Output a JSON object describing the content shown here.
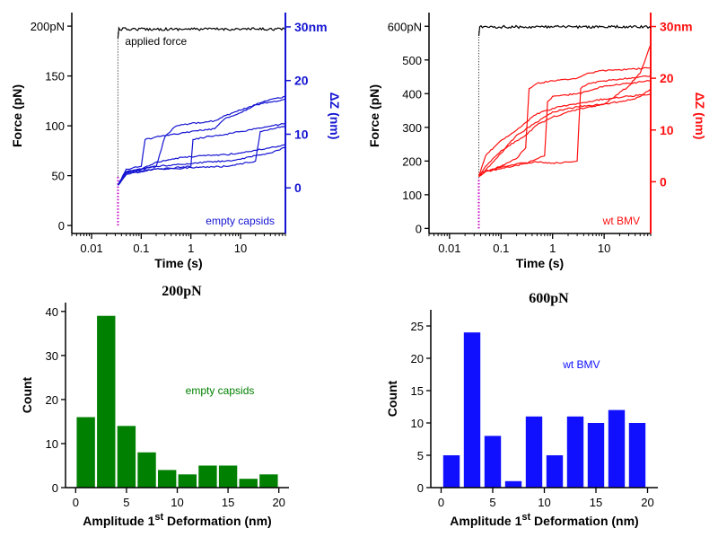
{
  "chart_data": [
    {
      "type": "line",
      "panel": "top-left",
      "xlabel": "Time (s)",
      "xscale": "log",
      "xlim": [
        0.004,
        80
      ],
      "xticks": [
        {
          "v": 0.01,
          "label": "0.01"
        },
        {
          "v": 0.1,
          "label": "0.1"
        },
        {
          "v": 1,
          "label": "1"
        },
        {
          "v": 10,
          "label": "10"
        }
      ],
      "ylabel": "Force (pN)",
      "ylim": [
        -8,
        210
      ],
      "yticks": [
        {
          "v": 0,
          "label": "0"
        },
        {
          "v": 50,
          "label": "50"
        },
        {
          "v": 100,
          "label": "100"
        },
        {
          "v": 150,
          "label": "150"
        },
        {
          "v": 200,
          "label": "200pN"
        }
      ],
      "y2label": "ΔZ (nm)",
      "y2lim": [
        -8.5,
        32
      ],
      "y2ticks": [
        {
          "v": 0,
          "label": "0"
        },
        {
          "v": 10,
          "label": "10"
        },
        {
          "v": 20,
          "label": "20"
        },
        {
          "v": 30,
          "label": "30nm"
        }
      ],
      "axis2_color": "#1414d2",
      "force_color": "#000000",
      "ramp_color": "#c000c0",
      "trace_color": "#1414d2",
      "annotations": [
        {
          "text": "applied force",
          "color": "#000000"
        },
        {
          "text": "empty capsids",
          "color": "#1414d2"
        }
      ],
      "force_series": {
        "t0": 0.034,
        "plateau": 197
      },
      "series": [
        {
          "x": [
            0.034,
            0.05,
            0.1,
            0.2,
            0.5,
            1,
            2,
            5,
            10,
            20,
            40,
            80
          ],
          "y": [
            0.5,
            2.5,
            3.5,
            4.8,
            5.5,
            5.8,
            6.0,
            6.2,
            6.5,
            7.0,
            7.5,
            8.0
          ]
        },
        {
          "x": [
            0.034,
            0.05,
            0.1,
            0.2,
            0.5,
            1,
            2,
            5,
            10,
            20,
            40,
            80
          ],
          "y": [
            0.5,
            3.0,
            3.5,
            4.0,
            4.3,
            4.5,
            4.8,
            5.0,
            5.3,
            6.0,
            6.5,
            7.5
          ]
        },
        {
          "x": [
            0.034,
            0.05,
            0.1,
            0.2,
            0.5,
            1,
            1.1,
            2,
            5,
            10,
            20,
            40,
            80
          ],
          "y": [
            0.5,
            2.5,
            3.0,
            3.5,
            3.8,
            4.0,
            9.0,
            9.5,
            10.0,
            10.5,
            11.0,
            11.5,
            12.0
          ]
        },
        {
          "x": [
            0.034,
            0.05,
            0.1,
            0.12,
            0.2,
            0.5,
            1,
            3,
            5,
            10,
            20,
            40,
            80
          ],
          "y": [
            0.5,
            3.5,
            4.0,
            9.0,
            9.5,
            10.0,
            10.5,
            11.0,
            13.0,
            14.0,
            15.5,
            16.0,
            16.5
          ]
        },
        {
          "x": [
            0.034,
            0.05,
            0.1,
            0.2,
            0.3,
            0.5,
            1,
            3,
            5,
            10,
            20,
            40,
            80
          ],
          "y": [
            0.5,
            3.0,
            3.5,
            4.0,
            9.5,
            11.5,
            12.0,
            12.5,
            13.5,
            14.5,
            15.5,
            16.5,
            17.0
          ]
        },
        {
          "x": [
            0.034,
            0.05,
            0.1,
            0.2,
            0.5,
            1,
            5,
            10,
            20,
            25,
            40,
            80
          ],
          "y": [
            0.5,
            2.8,
            3.2,
            3.5,
            3.6,
            3.8,
            4.0,
            4.5,
            5.0,
            10.5,
            11.0,
            11.5
          ]
        }
      ]
    },
    {
      "type": "line",
      "panel": "top-right",
      "xlabel": "Time (s)",
      "xscale": "log",
      "xlim": [
        0.004,
        80
      ],
      "xticks": [
        {
          "v": 0.01,
          "label": "0.01"
        },
        {
          "v": 0.1,
          "label": "0.1"
        },
        {
          "v": 1,
          "label": "1"
        },
        {
          "v": 10,
          "label": "10"
        }
      ],
      "ylabel": "Force (pN)",
      "ylim": [
        -15,
        630
      ],
      "yticks": [
        {
          "v": 0,
          "label": "0"
        },
        {
          "v": 100,
          "label": "100"
        },
        {
          "v": 200,
          "label": "200"
        },
        {
          "v": 300,
          "label": "300"
        },
        {
          "v": 400,
          "label": "400"
        },
        {
          "v": 500,
          "label": "500"
        },
        {
          "v": 600,
          "label": "600pN"
        }
      ],
      "y2label": "ΔZ (nm)",
      "y2lim": [
        -10,
        32
      ],
      "y2ticks": [
        {
          "v": 0,
          "label": "0"
        },
        {
          "v": 10,
          "label": "10"
        },
        {
          "v": 20,
          "label": "20"
        },
        {
          "v": 30,
          "label": "30nm"
        }
      ],
      "axis2_color": "#ff1010",
      "force_color": "#000000",
      "ramp_color": "#c000c0",
      "trace_color": "#ff1010",
      "annotations": [
        {
          "text": "wt BMV",
          "color": "#ff1010"
        }
      ],
      "force_series": {
        "t0": 0.037,
        "plateau": 598
      },
      "series": [
        {
          "x": [
            0.037,
            0.05,
            0.1,
            0.2,
            0.5,
            1,
            2,
            3,
            3.5,
            5,
            10,
            30,
            80
          ],
          "y": [
            1.0,
            2.0,
            2.8,
            3.5,
            3.8,
            3.6,
            3.8,
            4.0,
            18.0,
            19.0,
            19.5,
            20.0,
            20.5
          ]
        },
        {
          "x": [
            0.037,
            0.05,
            0.1,
            0.3,
            0.7,
            0.8,
            1,
            3,
            5,
            10,
            30,
            80
          ],
          "y": [
            1.5,
            2.0,
            2.5,
            3.5,
            5.0,
            15.5,
            16.5,
            17.0,
            17.5,
            18.5,
            19.0,
            19.5
          ]
        },
        {
          "x": [
            0.037,
            0.05,
            0.1,
            0.2,
            0.3,
            0.35,
            0.5,
            1,
            3,
            5,
            10,
            40,
            80
          ],
          "y": [
            1.0,
            2.0,
            3.0,
            4.5,
            6.5,
            18.0,
            19.0,
            19.5,
            20.0,
            21.0,
            21.5,
            21.8,
            22.0
          ]
        },
        {
          "x": [
            0.037,
            0.05,
            0.1,
            0.2,
            0.4,
            0.6,
            0.8,
            1,
            2,
            5,
            10,
            30,
            80
          ],
          "y": [
            1.0,
            5.0,
            8.0,
            10.0,
            12.5,
            13.5,
            13.8,
            14.2,
            14.8,
            15.5,
            16.0,
            16.5,
            17.0
          ]
        },
        {
          "x": [
            0.037,
            0.06,
            0.1,
            0.2,
            0.5,
            1,
            3,
            10,
            20,
            40,
            60,
            80
          ],
          "y": [
            1.0,
            3.0,
            5.5,
            9.0,
            11.5,
            13.5,
            14.5,
            15.0,
            15.5,
            16.0,
            17.0,
            18.0
          ]
        },
        {
          "x": [
            0.037,
            0.05,
            0.1,
            0.3,
            0.5,
            1,
            3,
            10,
            30,
            50,
            65,
            80
          ],
          "y": [
            1.0,
            3.0,
            6.0,
            9.0,
            11.0,
            12.5,
            14.0,
            15.0,
            18.5,
            21.0,
            24.0,
            26.5
          ]
        }
      ]
    },
    {
      "type": "bar",
      "panel": "bottom-left",
      "title": "200pN",
      "xlabel": "Amplitude 1st Deformation (nm)",
      "xlabel_parts": {
        "before": "Amplitude 1",
        "sup": "st",
        "after": " Deformation (nm)"
      },
      "ylabel": "Count",
      "xlim": [
        -1,
        21
      ],
      "xticks": [
        0,
        5,
        10,
        15,
        20
      ],
      "ylim": [
        0,
        42
      ],
      "yticks": [
        0,
        10,
        20,
        30,
        40
      ],
      "bar_width": 1.8,
      "color": "#008000",
      "annotation": {
        "text": "empty capsids",
        "color": "#008000"
      },
      "x": [
        1,
        3,
        5,
        7,
        9,
        11,
        13,
        15,
        17,
        19
      ],
      "values": [
        16,
        39,
        14,
        8,
        4,
        3,
        5,
        5,
        2,
        3
      ]
    },
    {
      "type": "bar",
      "panel": "bottom-right",
      "title": "600pN",
      "xlabel": "Amplitude 1st Deformation (nm)",
      "xlabel_parts": {
        "before": "Amplitude 1",
        "sup": "st",
        "after": " Deformation (nm)"
      },
      "ylabel": "Count",
      "xlim": [
        -1,
        21
      ],
      "xticks": [
        0,
        5,
        10,
        15,
        20
      ],
      "ylim": [
        0,
        27.5
      ],
      "yticks": [
        0,
        5,
        10,
        15,
        20,
        25
      ],
      "bar_width": 1.6,
      "color": "#1010ff",
      "annotation": {
        "text": "wt BMV",
        "color": "#1010ff"
      },
      "x": [
        1,
        3,
        5,
        7,
        9,
        11,
        13,
        15,
        17,
        19
      ],
      "values": [
        5,
        24,
        8,
        1,
        11,
        5,
        11,
        10,
        12,
        10
      ]
    }
  ]
}
